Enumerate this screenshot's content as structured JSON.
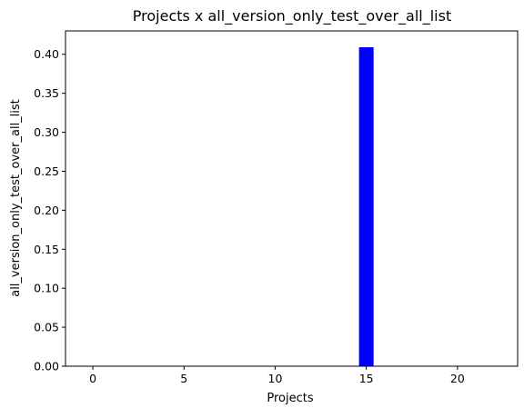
{
  "chart_data": {
    "type": "bar",
    "title": "Projects x all_version_only_test_over_all_list",
    "xlabel": "Projects",
    "ylabel": "all_version_only_test_over_all_list",
    "x": [
      15
    ],
    "values": [
      0.409
    ],
    "bar_width": 0.8,
    "bar_color": "#0000ff",
    "xlim": [
      -1.5,
      23.3
    ],
    "ylim": [
      0,
      0.43
    ],
    "xticks": [
      0,
      5,
      10,
      15,
      20
    ],
    "xtick_labels": [
      "0",
      "5",
      "10",
      "15",
      "20"
    ],
    "yticks": [
      0.0,
      0.05,
      0.1,
      0.15,
      0.2,
      0.25,
      0.3,
      0.35,
      0.4
    ],
    "ytick_labels": [
      "0.00",
      "0.05",
      "0.10",
      "0.15",
      "0.20",
      "0.25",
      "0.30",
      "0.35",
      "0.40"
    ],
    "grid": false,
    "legend": false
  }
}
